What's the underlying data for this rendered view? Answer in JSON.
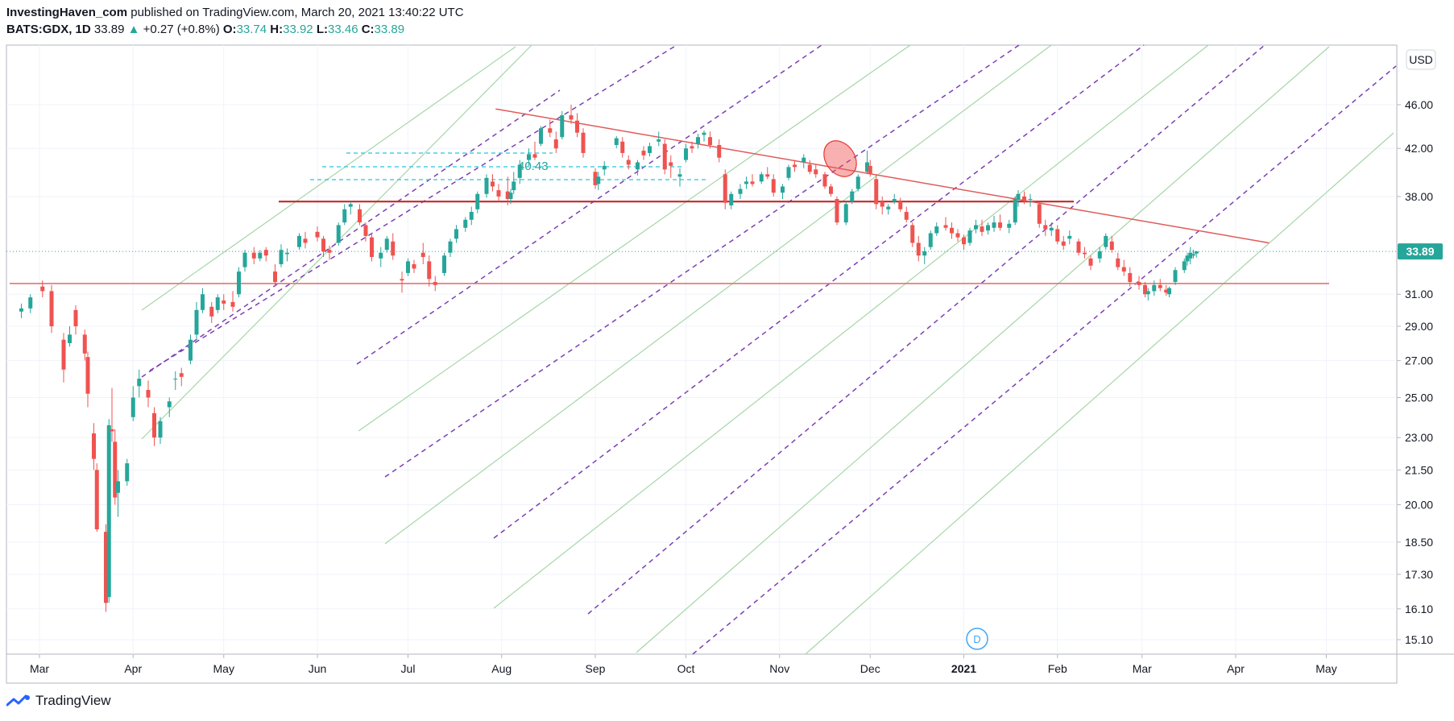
{
  "header": {
    "author": "InvestingHaven_com",
    "published_text": "published on TradingView.com, March 20, 2021 13:40:22 UTC",
    "symbol": "BATS:GDX, 1D",
    "last": "33.89",
    "change": "+0.27 (+0.8%)",
    "open_label": "O:",
    "open": "33.74",
    "high_label": "H:",
    "high": "33.92",
    "low_label": "L:",
    "low": "33.46",
    "close_label": "C:",
    "close": "33.89"
  },
  "footer": {
    "brand": "TradingView"
  },
  "colors": {
    "up": "#26a69a",
    "down": "#ef5350",
    "support": "#c62828",
    "resistance": "#e57373",
    "trend_dashed": "#7b3fb5",
    "trend_green": "#a5d6a7",
    "fib": "#26c6da",
    "price_line": "#26a69a"
  },
  "chart_data": {
    "type": "candlestick",
    "currency": "USD",
    "x_ticks": [
      "Mar",
      "Apr",
      "May",
      "Jun",
      "Jul",
      "Aug",
      "Sep",
      "Oct",
      "Nov",
      "Dec",
      "2021",
      "Feb",
      "Mar",
      "Apr",
      "May"
    ],
    "y_ticks": [
      "46.00",
      "42.00",
      "38.00",
      "31.00",
      "29.00",
      "27.00",
      "25.00",
      "23.00",
      "21.50",
      "20.00",
      "18.50",
      "17.30",
      "16.10",
      "15.10"
    ],
    "y_scale": "log",
    "ylim": [
      14.6,
      50.5
    ],
    "last_price": "33.89",
    "fib_label": "40.43",
    "event_marker": "D",
    "annotations": {
      "resistance_high": 37.6,
      "support_low": 31.7,
      "descending_trendline": [
        [
          "2020-07-30",
          45.6
        ],
        [
          "2021-04-12",
          34.5
        ]
      ]
    },
    "candles": [
      [
        "2020-02-24",
        29.9,
        30.4,
        29.5,
        30.1
      ],
      [
        "2020-02-27",
        30.1,
        31.0,
        29.8,
        30.8
      ],
      [
        "2020-03-02",
        31.5,
        31.9,
        30.8,
        31.2
      ],
      [
        "2020-03-05",
        31.2,
        31.6,
        28.6,
        29.0
      ],
      [
        "2020-03-09",
        28.2,
        28.6,
        25.8,
        26.5
      ],
      [
        "2020-03-11",
        28.0,
        29.0,
        27.8,
        28.5
      ],
      [
        "2020-03-13",
        30.0,
        30.3,
        28.5,
        29.0
      ],
      [
        "2020-03-16",
        28.5,
        28.8,
        27.0,
        27.4
      ],
      [
        "2020-03-17",
        27.2,
        27.5,
        24.5,
        25.2
      ],
      [
        "2020-03-19",
        23.2,
        23.7,
        21.5,
        22.0
      ],
      [
        "2020-03-20",
        21.5,
        21.8,
        18.9,
        19.0
      ],
      [
        "2020-03-23",
        18.9,
        19.2,
        16.0,
        16.3
      ],
      [
        "2020-03-24",
        16.5,
        23.9,
        16.3,
        23.6
      ],
      [
        "2020-03-25",
        23.4,
        25.5,
        22.8,
        23.3
      ],
      [
        "2020-03-26",
        22.8,
        23.4,
        20.0,
        20.3
      ],
      [
        "2020-03-27",
        20.5,
        21.5,
        19.5,
        21.0
      ],
      [
        "2020-03-30",
        21.0,
        22.0,
        20.8,
        21.8
      ],
      [
        "2020-04-01",
        24.0,
        25.6,
        23.8,
        25.0
      ],
      [
        "2020-04-03",
        25.6,
        26.5,
        25.0,
        26.0
      ],
      [
        "2020-04-06",
        25.4,
        25.9,
        24.5,
        25.0
      ],
      [
        "2020-04-08",
        24.2,
        24.5,
        22.6,
        23.0
      ],
      [
        "2020-04-10",
        23.0,
        24.0,
        22.7,
        23.8
      ],
      [
        "2020-04-13",
        24.5,
        25.0,
        24.0,
        24.8
      ],
      [
        "2020-04-15",
        26.0,
        26.4,
        25.4,
        26.0
      ],
      [
        "2020-04-17",
        26.3,
        26.6,
        25.6,
        26.1
      ],
      [
        "2020-04-20",
        27.0,
        28.5,
        26.8,
        28.2
      ],
      [
        "2020-04-22",
        28.5,
        30.5,
        28.2,
        30.0
      ],
      [
        "2020-04-24",
        30.0,
        31.4,
        29.8,
        31.0
      ],
      [
        "2020-04-27",
        30.2,
        30.5,
        29.2,
        29.6
      ],
      [
        "2020-04-29",
        30.0,
        31.0,
        29.8,
        30.8
      ],
      [
        "2020-05-01",
        30.6,
        31.0,
        30.0,
        30.4
      ],
      [
        "2020-05-04",
        30.5,
        31.2,
        29.9,
        30.2
      ],
      [
        "2020-05-06",
        31.0,
        32.8,
        30.8,
        32.5
      ],
      [
        "2020-05-08",
        32.8,
        34.0,
        32.5,
        33.8
      ],
      [
        "2020-05-11",
        33.8,
        34.2,
        33.0,
        33.4
      ],
      [
        "2020-05-13",
        33.4,
        34.0,
        33.2,
        33.8
      ],
      [
        "2020-05-15",
        34.0,
        34.2,
        33.2,
        33.6
      ],
      [
        "2020-05-18",
        32.5,
        33.0,
        31.5,
        31.8
      ],
      [
        "2020-05-20",
        33.0,
        34.4,
        32.8,
        34.0
      ],
      [
        "2020-05-22",
        33.7,
        34.1,
        33.2,
        33.8
      ],
      [
        "2020-05-26",
        34.2,
        35.2,
        34.0,
        35.0
      ],
      [
        "2020-05-28",
        34.8,
        35.3,
        34.1,
        34.5
      ],
      [
        "2020-06-01",
        35.3,
        35.7,
        34.6,
        34.9
      ],
      [
        "2020-06-03",
        34.8,
        35.0,
        33.5,
        33.9
      ],
      [
        "2020-06-05",
        34.0,
        34.3,
        33.3,
        33.8
      ],
      [
        "2020-06-08",
        34.5,
        36.0,
        34.3,
        35.8
      ],
      [
        "2020-06-10",
        36.0,
        37.4,
        35.8,
        37.0
      ],
      [
        "2020-06-12",
        37.2,
        37.6,
        36.6,
        37.4
      ],
      [
        "2020-06-15",
        37.0,
        37.4,
        35.8,
        36.0
      ],
      [
        "2020-06-17",
        35.8,
        36.0,
        34.6,
        35.0
      ],
      [
        "2020-06-19",
        34.9,
        35.2,
        33.2,
        33.5
      ],
      [
        "2020-06-22",
        33.4,
        34.2,
        32.8,
        33.8
      ],
      [
        "2020-06-24",
        34.0,
        35.0,
        33.8,
        34.8
      ],
      [
        "2020-06-26",
        34.6,
        35.2,
        33.3,
        33.6
      ],
      [
        "2020-06-29",
        32.0,
        32.5,
        31.1,
        31.9
      ],
      [
        "2020-07-01",
        32.4,
        33.4,
        32.2,
        33.2
      ],
      [
        "2020-07-03",
        33.0,
        33.3,
        32.4,
        32.7
      ],
      [
        "2020-07-06",
        33.8,
        34.5,
        33.0,
        33.5
      ],
      [
        "2020-07-08",
        33.2,
        33.6,
        31.5,
        32.0
      ],
      [
        "2020-07-10",
        31.8,
        32.2,
        31.2,
        31.6
      ],
      [
        "2020-07-13",
        32.4,
        33.8,
        32.2,
        33.6
      ],
      [
        "2020-07-15",
        33.8,
        34.8,
        33.5,
        34.6
      ],
      [
        "2020-07-17",
        34.8,
        35.8,
        34.5,
        35.5
      ],
      [
        "2020-07-20",
        35.6,
        36.4,
        35.3,
        36.2
      ],
      [
        "2020-07-22",
        36.2,
        37.2,
        35.8,
        36.8
      ],
      [
        "2020-07-24",
        37.0,
        38.4,
        36.7,
        38.2
      ],
      [
        "2020-07-27",
        38.2,
        39.8,
        37.9,
        39.5
      ],
      [
        "2020-07-29",
        39.2,
        39.8,
        38.4,
        38.8
      ],
      [
        "2020-07-31",
        38.5,
        39.0,
        37.6,
        38.0
      ],
      [
        "2020-08-03",
        38.4,
        39.6,
        37.3,
        37.8
      ],
      [
        "2020-08-04",
        37.8,
        38.6,
        37.4,
        38.3
      ],
      [
        "2020-08-05",
        38.5,
        40.0,
        38.2,
        39.2
      ],
      [
        "2020-08-07",
        39.5,
        41.0,
        39.0,
        40.6
      ],
      [
        "2020-08-10",
        41.0,
        42.0,
        40.5,
        41.5
      ],
      [
        "2020-08-12",
        41.5,
        42.6,
        41.0,
        41.2
      ],
      [
        "2020-08-14",
        42.4,
        44.0,
        42.2,
        43.8
      ],
      [
        "2020-08-17",
        43.8,
        44.6,
        43.0,
        43.4
      ],
      [
        "2020-08-19",
        42.8,
        43.5,
        41.6,
        42.0
      ],
      [
        "2020-08-21",
        43.0,
        45.4,
        42.8,
        45.0
      ],
      [
        "2020-08-24",
        45.0,
        46.0,
        44.2,
        44.6
      ],
      [
        "2020-08-26",
        44.5,
        45.2,
        43.0,
        43.4
      ],
      [
        "2020-08-28",
        43.4,
        43.8,
        41.2,
        41.6
      ],
      [
        "2020-09-01",
        40.0,
        40.3,
        38.6,
        38.9
      ],
      [
        "2020-09-02",
        39.0,
        40.0,
        38.5,
        39.6
      ],
      [
        "2020-09-04",
        40.2,
        40.9,
        39.7,
        40.5
      ],
      [
        "2020-09-08",
        42.3,
        43.1,
        42.0,
        42.9
      ],
      [
        "2020-09-10",
        42.6,
        43.0,
        41.2,
        41.6
      ],
      [
        "2020-09-12",
        41.0,
        41.4,
        40.2,
        40.6
      ],
      [
        "2020-09-15",
        40.2,
        41.0,
        39.7,
        40.8
      ],
      [
        "2020-09-17",
        41.8,
        42.2,
        41.0,
        41.4
      ],
      [
        "2020-09-19",
        41.6,
        42.5,
        41.3,
        42.2
      ],
      [
        "2020-09-22",
        42.6,
        43.5,
        42.2,
        42.8
      ],
      [
        "2020-09-24",
        42.4,
        42.8,
        39.8,
        40.2
      ],
      [
        "2020-09-26",
        40.8,
        41.4,
        39.5,
        40.5
      ],
      [
        "2020-09-29",
        39.6,
        40.3,
        38.8,
        39.8
      ],
      [
        "2020-10-01",
        41.0,
        42.4,
        40.8,
        42.0
      ],
      [
        "2020-10-03",
        42.2,
        42.6,
        41.6,
        42.0
      ],
      [
        "2020-10-05",
        42.4,
        43.3,
        42.0,
        43.0
      ],
      [
        "2020-10-07",
        43.2,
        43.6,
        42.6,
        43.4
      ],
      [
        "2020-10-09",
        43.0,
        43.5,
        42.0,
        42.3
      ],
      [
        "2020-10-12",
        42.3,
        42.8,
        40.8,
        41.2
      ],
      [
        "2020-10-14",
        39.8,
        40.2,
        37.0,
        37.5
      ],
      [
        "2020-10-16",
        37.3,
        38.4,
        37.0,
        38.2
      ],
      [
        "2020-10-19",
        38.2,
        39.0,
        37.8,
        38.6
      ],
      [
        "2020-10-21",
        39.0,
        39.6,
        38.6,
        39.2
      ],
      [
        "2020-10-23",
        39.2,
        39.8,
        38.8,
        39.0
      ],
      [
        "2020-10-26",
        39.2,
        40.0,
        39.0,
        39.8
      ],
      [
        "2020-10-28",
        39.8,
        40.4,
        39.4,
        39.6
      ],
      [
        "2020-10-30",
        39.4,
        39.8,
        38.0,
        38.3
      ],
      [
        "2020-11-02",
        38.3,
        39.0,
        37.8,
        38.8
      ],
      [
        "2020-11-04",
        39.5,
        40.6,
        39.3,
        40.4
      ],
      [
        "2020-11-06",
        40.6,
        41.0,
        40.0,
        40.4
      ],
      [
        "2020-11-09",
        40.8,
        41.5,
        40.3,
        41.2
      ],
      [
        "2020-11-11",
        40.6,
        41.0,
        39.8,
        40.0
      ],
      [
        "2020-11-13",
        40.2,
        40.6,
        39.5,
        39.8
      ],
      [
        "2020-11-16",
        39.8,
        40.0,
        38.6,
        38.8
      ],
      [
        "2020-11-18",
        38.8,
        39.0,
        38.0,
        38.2
      ],
      [
        "2020-11-20",
        37.8,
        38.0,
        35.8,
        36.0
      ],
      [
        "2020-11-23",
        36.0,
        37.6,
        35.8,
        37.4
      ],
      [
        "2020-11-25",
        37.6,
        38.6,
        37.4,
        38.4
      ],
      [
        "2020-11-27",
        38.6,
        39.8,
        38.4,
        39.6
      ],
      [
        "2020-11-30",
        40.0,
        41.8,
        39.8,
        40.8
      ],
      [
        "2020-12-01",
        40.5,
        41.0,
        39.6,
        39.8
      ],
      [
        "2020-12-03",
        39.4,
        39.8,
        37.0,
        37.4
      ],
      [
        "2020-12-05",
        37.6,
        38.0,
        36.6,
        37.2
      ],
      [
        "2020-12-07",
        37.0,
        37.4,
        36.6,
        37.2
      ],
      [
        "2020-12-09",
        37.6,
        38.2,
        37.4,
        37.8
      ],
      [
        "2020-12-11",
        37.6,
        37.9,
        36.8,
        37.0
      ],
      [
        "2020-12-13",
        36.8,
        37.2,
        36.0,
        36.2
      ],
      [
        "2020-12-15",
        35.8,
        36.0,
        34.2,
        34.5
      ],
      [
        "2020-12-17",
        34.5,
        35.0,
        33.2,
        33.6
      ],
      [
        "2020-12-19",
        33.6,
        34.2,
        33.0,
        33.9
      ],
      [
        "2020-12-21",
        34.2,
        35.4,
        34.0,
        35.2
      ],
      [
        "2020-12-23",
        35.2,
        36.0,
        35.0,
        35.7
      ],
      [
        "2020-12-26",
        35.8,
        36.4,
        35.4,
        35.6
      ],
      [
        "2020-12-28",
        35.6,
        36.0,
        34.8,
        35.2
      ],
      [
        "2020-12-30",
        35.2,
        35.5,
        34.6,
        34.9
      ],
      [
        "2021-01-01",
        34.9,
        35.1,
        34.0,
        34.4
      ],
      [
        "2021-01-03",
        34.5,
        35.6,
        34.3,
        35.4
      ],
      [
        "2021-01-05",
        35.5,
        36.2,
        35.2,
        35.8
      ],
      [
        "2021-01-07",
        35.7,
        36.2,
        35.0,
        35.3
      ],
      [
        "2021-01-09",
        35.4,
        36.0,
        35.1,
        35.8
      ],
      [
        "2021-01-11",
        35.6,
        36.5,
        35.3,
        36.0
      ],
      [
        "2021-01-13",
        36.0,
        36.6,
        35.4,
        35.6
      ],
      [
        "2021-01-16",
        35.6,
        36.2,
        35.2,
        35.9
      ],
      [
        "2021-01-18",
        36.0,
        38.0,
        35.8,
        37.8
      ],
      [
        "2021-01-19",
        37.8,
        38.5,
        37.2,
        38.2
      ],
      [
        "2021-01-21",
        38.0,
        38.4,
        37.4,
        37.7
      ],
      [
        "2021-01-23",
        37.8,
        38.2,
        37.2,
        37.8
      ],
      [
        "2021-01-26",
        37.4,
        37.6,
        35.6,
        35.9
      ],
      [
        "2021-01-28",
        35.8,
        36.2,
        35.0,
        35.5
      ],
      [
        "2021-01-30",
        35.4,
        36.0,
        35.0,
        35.6
      ],
      [
        "2021-02-01",
        35.5,
        35.8,
        34.4,
        34.6
      ],
      [
        "2021-02-03",
        34.6,
        35.0,
        34.0,
        34.3
      ],
      [
        "2021-02-05",
        34.8,
        35.4,
        34.4,
        35.0
      ],
      [
        "2021-02-08",
        34.6,
        34.8,
        33.6,
        33.8
      ],
      [
        "2021-02-10",
        33.8,
        34.2,
        33.4,
        33.7
      ],
      [
        "2021-02-12",
        33.4,
        33.6,
        32.6,
        32.9
      ],
      [
        "2021-02-15",
        33.4,
        34.2,
        33.1,
        33.9
      ],
      [
        "2021-02-17",
        34.2,
        35.2,
        34.0,
        35.0
      ],
      [
        "2021-02-19",
        34.6,
        35.0,
        33.8,
        34.0
      ],
      [
        "2021-02-21",
        33.4,
        33.8,
        32.6,
        32.8
      ],
      [
        "2021-02-23",
        32.8,
        33.3,
        32.2,
        32.5
      ],
      [
        "2021-02-25",
        32.4,
        32.8,
        31.5,
        31.8
      ],
      [
        "2021-02-28",
        31.8,
        32.2,
        31.3,
        31.6
      ],
      [
        "2021-03-02",
        31.6,
        31.8,
        30.8,
        31.0
      ],
      [
        "2021-03-03",
        31.0,
        31.4,
        30.6,
        31.2
      ],
      [
        "2021-03-05",
        31.2,
        31.9,
        30.9,
        31.6
      ],
      [
        "2021-03-07",
        31.6,
        32.0,
        31.2,
        31.4
      ],
      [
        "2021-03-09",
        31.3,
        31.6,
        30.9,
        31.1
      ],
      [
        "2021-03-10",
        31.0,
        31.5,
        30.8,
        31.4
      ],
      [
        "2021-03-12",
        31.8,
        32.8,
        31.6,
        32.6
      ],
      [
        "2021-03-15",
        32.6,
        33.4,
        32.4,
        33.2
      ],
      [
        "2021-03-16",
        33.2,
        33.8,
        32.9,
        33.6
      ],
      [
        "2021-03-17",
        33.4,
        34.2,
        33.0,
        33.8
      ],
      [
        "2021-03-18",
        33.6,
        34.0,
        33.4,
        33.7
      ],
      [
        "2021-03-19",
        33.74,
        33.92,
        33.46,
        33.89
      ]
    ]
  }
}
